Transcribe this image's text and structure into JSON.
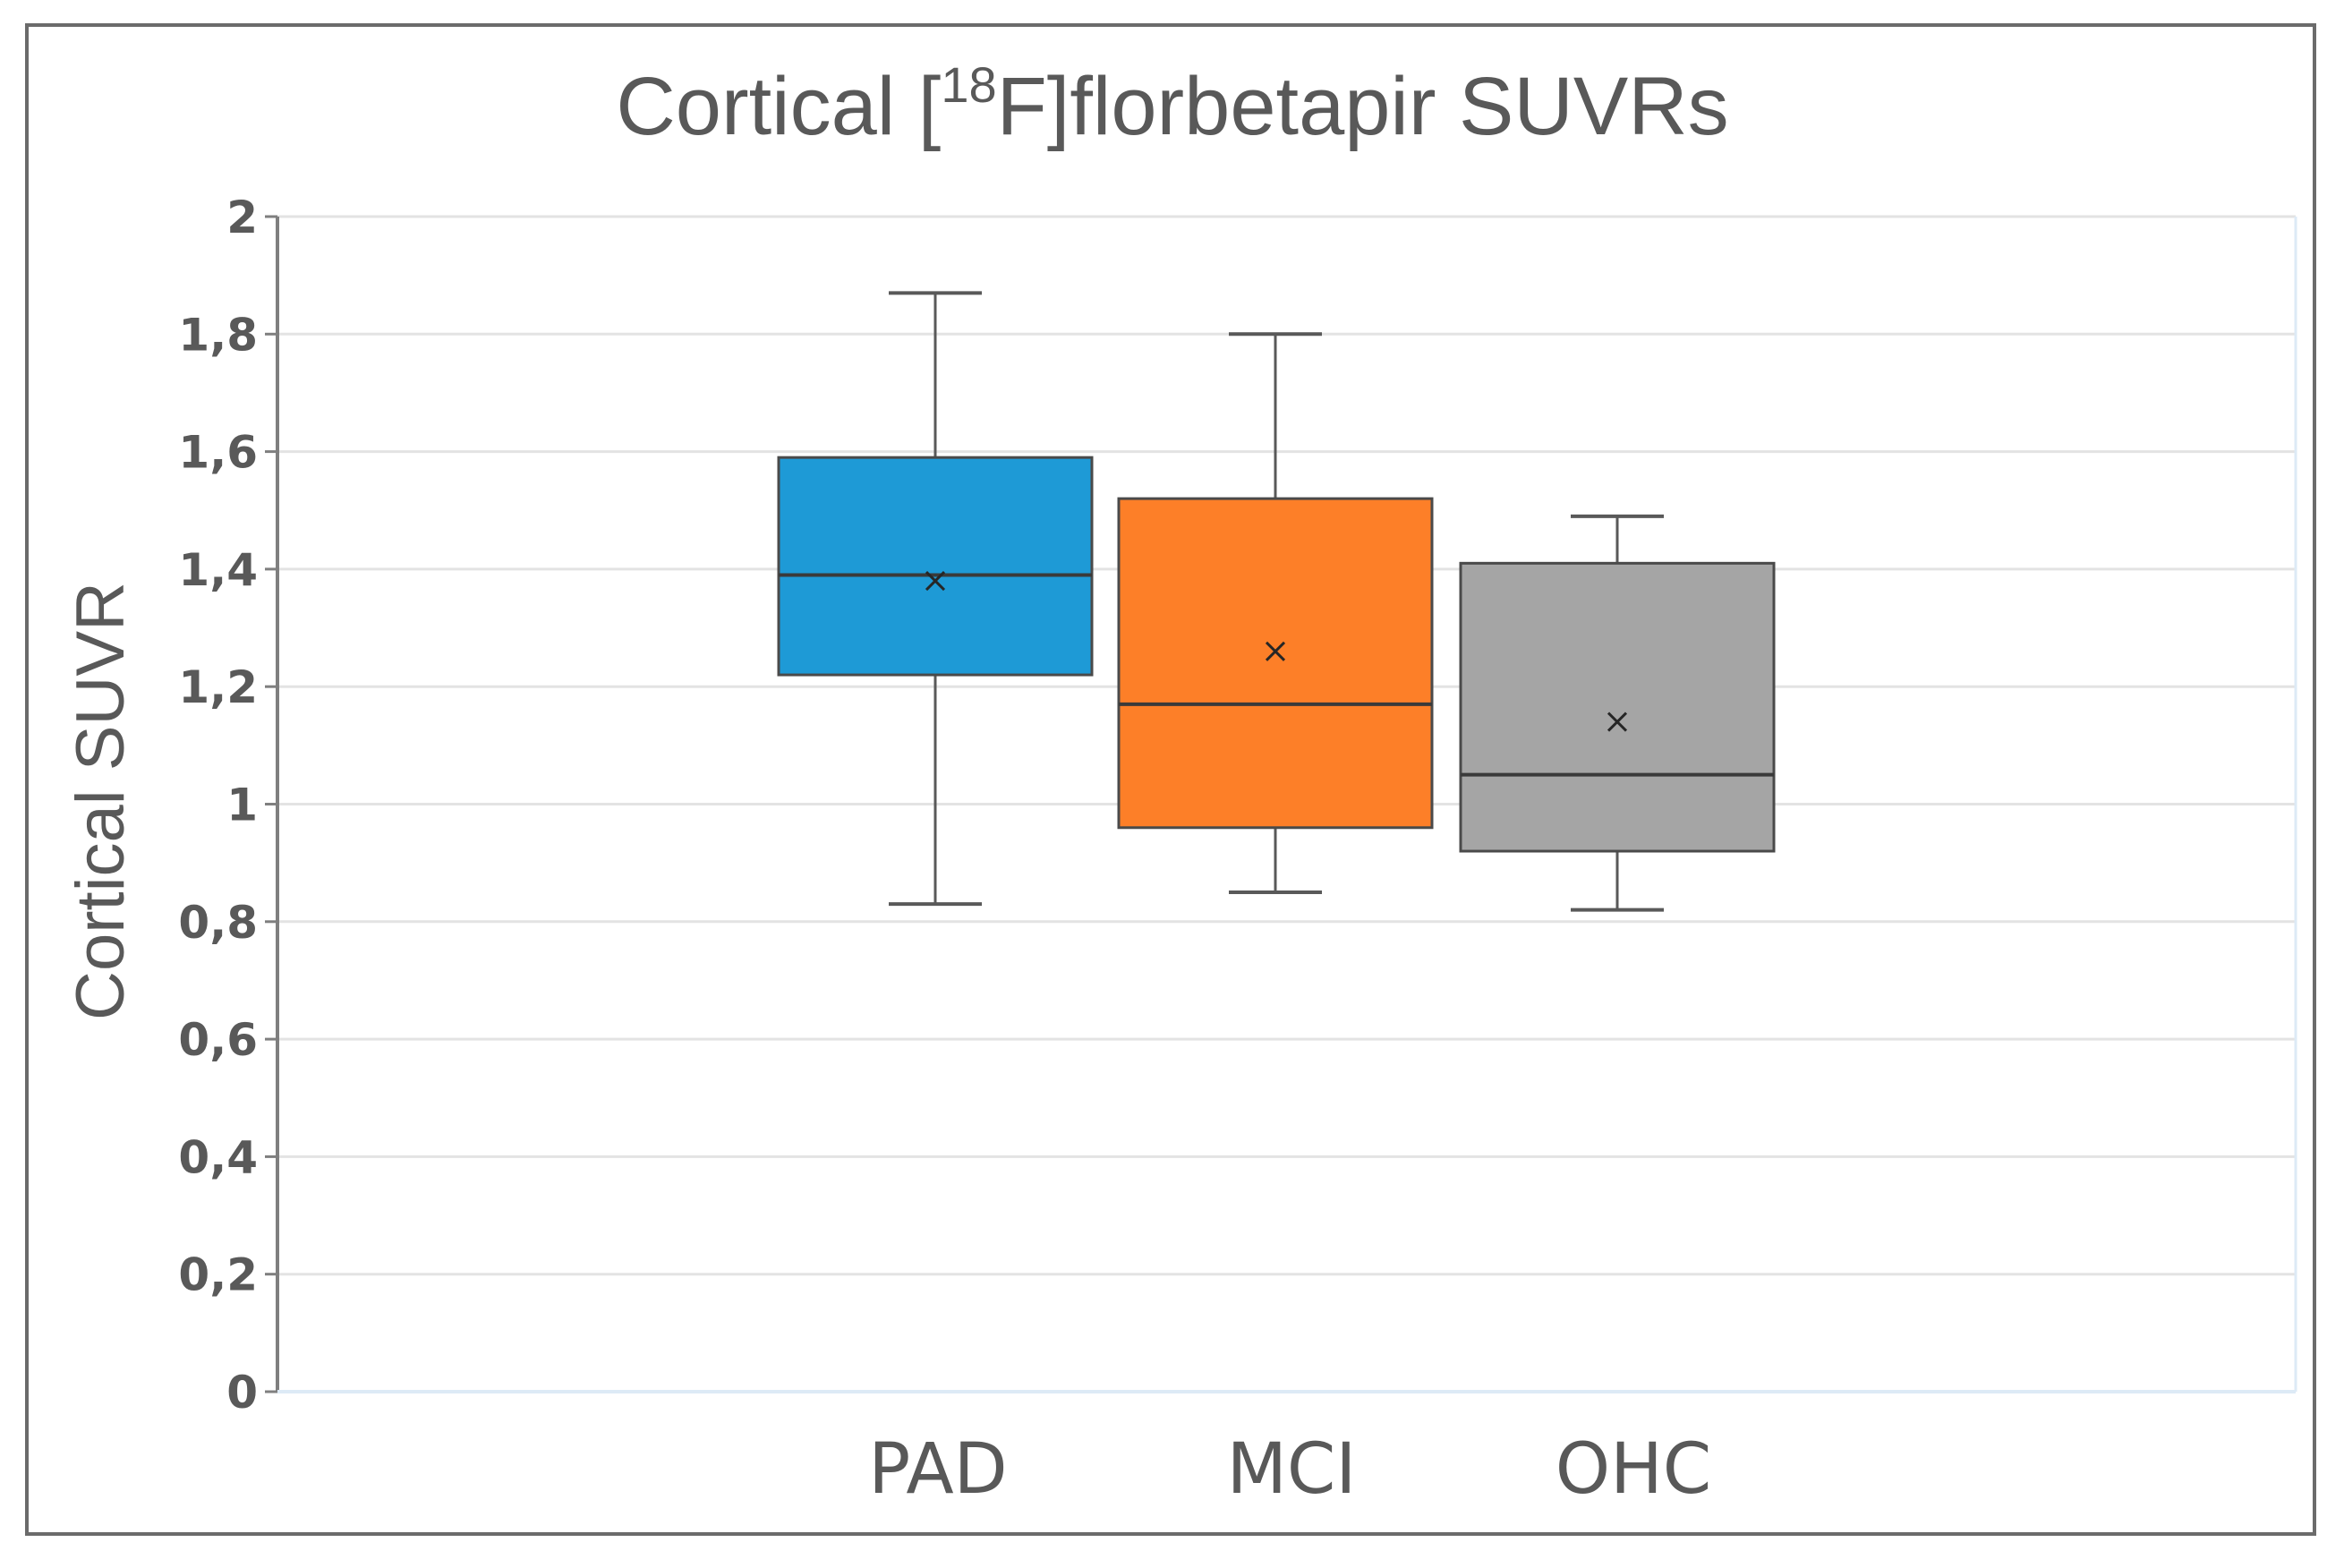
{
  "chart_data": {
    "type": "box",
    "title": "Cortical [",
    "title_sup": "18",
    "title_rest": "F]florbetapir SUVRs",
    "xlabel": "",
    "ylabel": "Cortical SUVR",
    "ylim": [
      0,
      2
    ],
    "yticks": [
      {
        "value": 0,
        "label": "0"
      },
      {
        "value": 0.2,
        "label": "0,2"
      },
      {
        "value": 0.4,
        "label": "0,4"
      },
      {
        "value": 0.6,
        "label": "0,6"
      },
      {
        "value": 0.8,
        "label": "0,8"
      },
      {
        "value": 1.0,
        "label": "1"
      },
      {
        "value": 1.2,
        "label": "1,2"
      },
      {
        "value": 1.4,
        "label": "1,4"
      },
      {
        "value": 1.6,
        "label": "1,6"
      },
      {
        "value": 1.8,
        "label": "1,8"
      },
      {
        "value": 2.0,
        "label": "2"
      }
    ],
    "grid": true,
    "series": [
      {
        "name": "PAD",
        "color": "#1e9ad6",
        "min": 0.83,
        "q1": 1.22,
        "median": 1.39,
        "q3": 1.59,
        "max": 1.87,
        "mean": 1.38
      },
      {
        "name": "MCI",
        "color": "#fd7f28",
        "min": 0.85,
        "q1": 0.96,
        "median": 1.17,
        "q3": 1.52,
        "max": 1.8,
        "mean": 1.26
      },
      {
        "name": "OHC",
        "color": "#a5a5a5",
        "min": 0.82,
        "q1": 0.92,
        "median": 1.05,
        "q3": 1.41,
        "max": 1.49,
        "mean": 1.14
      }
    ]
  }
}
